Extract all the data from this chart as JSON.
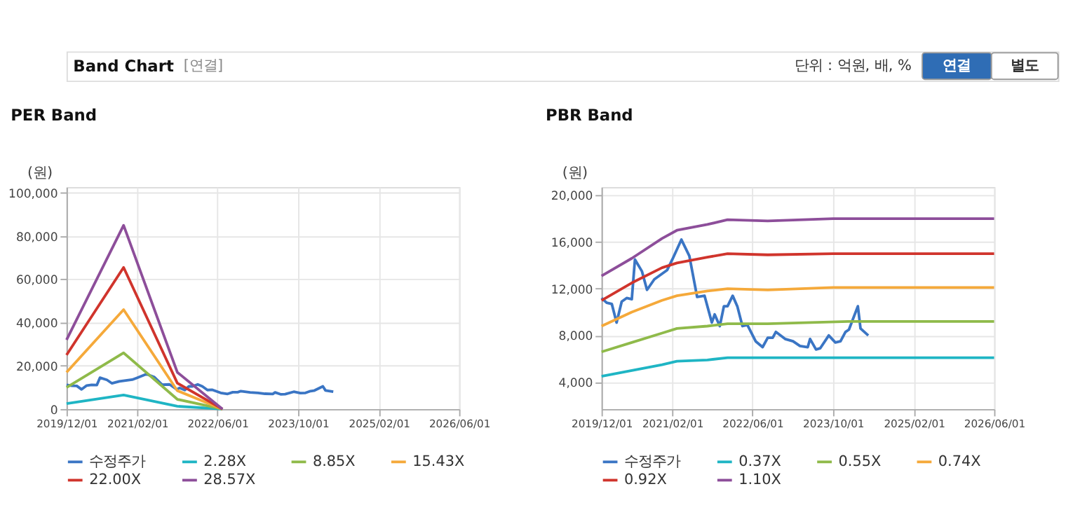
{
  "chart_data": [
    {
      "type": "line",
      "title": "PER Band",
      "ylabel": "(원)",
      "annotations": [
        "Band Chart",
        "[연결]",
        "단위 : 억원, 배, %",
        "연결",
        "별도"
      ],
      "xlim": [
        "2019-12-01",
        "2026-06-01"
      ],
      "xticks": [
        {
          "value": "2019-12-01",
          "label": "2019/12/01"
        },
        {
          "value": "2021-02-01",
          "label": "2021/02/01"
        },
        {
          "value": "2022-06-01",
          "label": "2022/06/01"
        },
        {
          "value": "2023-10-01",
          "label": "2023/10/01"
        },
        {
          "value": "2025-02-01",
          "label": "2025/02/01"
        },
        {
          "value": "2026-06-01",
          "label": "2026/06/01"
        }
      ],
      "ylim": [
        0,
        102700
      ],
      "yticks": [
        {
          "value": 0,
          "label": "0"
        },
        {
          "value": 20000,
          "label": "20,000"
        },
        {
          "value": 40000,
          "label": "40,000"
        },
        {
          "value": 60000,
          "label": "60,000"
        },
        {
          "value": 80000,
          "label": "80,000"
        },
        {
          "value": 100000,
          "label": "100,000"
        }
      ],
      "grid": true,
      "legend": "bottom",
      "series": [
        {
          "name": "수정주가",
          "color": "#3a75c4",
          "x": [
            "2019-12-01",
            "2020-01-01",
            "2020-02-01",
            "2020-03-01",
            "2020-04-01",
            "2020-05-01",
            "2020-06-01",
            "2020-06-20",
            "2020-08-01",
            "2020-09-01",
            "2020-10-15",
            "2021-01-01",
            "2021-02-01",
            "2021-03-28",
            "2021-05-15",
            "2021-07-01",
            "2021-08-15",
            "2021-09-28",
            "2021-10-15",
            "2021-11-15",
            "2021-12-10",
            "2022-01-01",
            "2022-02-01",
            "2022-03-01",
            "2022-04-01",
            "2022-05-01",
            "2022-06-20",
            "2022-08-01",
            "2022-09-01",
            "2022-10-01",
            "2022-10-20",
            "2022-12-15",
            "2023-02-01",
            "2023-03-15",
            "2023-05-01",
            "2023-05-15",
            "2023-06-20",
            "2023-07-15",
            "2023-09-05",
            "2023-10-15",
            "2023-11-15",
            "2023-12-15",
            "2024-01-05",
            "2024-02-28",
            "2024-03-15",
            "2024-05-01"
          ],
          "values": [
            11200,
            10800,
            10700,
            9100,
            10900,
            11200,
            11100,
            14500,
            13500,
            11900,
            12800,
            13600,
            14500,
            16200,
            14800,
            11300,
            11400,
            9100,
            9800,
            8800,
            10500,
            10500,
            11400,
            10500,
            8800,
            8900,
            7500,
            7000,
            7800,
            7800,
            8300,
            7700,
            7500,
            7100,
            7000,
            7700,
            6800,
            6900,
            8000,
            7400,
            7500,
            8300,
            8500,
            10500,
            8600,
            8000
          ]
        },
        {
          "name": "2.28X",
          "color": "#1fb5c4",
          "x": [
            "2019-12-01",
            "2020-11-10",
            "2021-10-01",
            "2022-07-01"
          ],
          "values": [
            2500,
            6500,
            1300,
            0
          ]
        },
        {
          "name": "8.85X",
          "color": "#8fba4a",
          "x": [
            "2019-12-01",
            "2020-11-10",
            "2021-10-01",
            "2022-07-01"
          ],
          "values": [
            10000,
            26000,
            4500,
            0
          ]
        },
        {
          "name": "15.43X",
          "color": "#f5a93a",
          "x": [
            "2019-12-01",
            "2020-11-10",
            "2021-10-01",
            "2022-07-01"
          ],
          "values": [
            17000,
            46000,
            8500,
            0
          ]
        },
        {
          "name": "22.00X",
          "color": "#d0342c",
          "x": [
            "2019-12-01",
            "2020-11-10",
            "2021-10-01",
            "2022-07-01"
          ],
          "values": [
            25000,
            65500,
            12000,
            0
          ]
        },
        {
          "name": "28.57X",
          "color": "#8d4e9a",
          "x": [
            "2019-12-01",
            "2020-11-10",
            "2021-10-01",
            "2022-07-01"
          ],
          "values": [
            32000,
            85000,
            17000,
            0
          ]
        }
      ]
    },
    {
      "type": "line",
      "title": "PBR Band",
      "ylabel": "(원)",
      "xlim": [
        "2019-12-01",
        "2026-06-01"
      ],
      "xticks": [
        {
          "value": "2019-12-01",
          "label": "2019/12/01"
        },
        {
          "value": "2021-02-01",
          "label": "2021/02/01"
        },
        {
          "value": "2022-06-01",
          "label": "2022/06/01"
        },
        {
          "value": "2023-10-01",
          "label": "2023/10/01"
        },
        {
          "value": "2025-02-01",
          "label": "2025/02/01"
        },
        {
          "value": "2026-06-01",
          "label": "2026/06/01"
        }
      ],
      "ylim": [
        1700,
        20700
      ],
      "yticks": [
        {
          "value": 4000,
          "label": "4,000"
        },
        {
          "value": 8000,
          "label": "8,000"
        },
        {
          "value": 12000,
          "label": "12,000"
        },
        {
          "value": 16000,
          "label": "16,000"
        },
        {
          "value": 20000,
          "label": "20,000"
        }
      ],
      "grid": true,
      "legend": "bottom",
      "series": [
        {
          "name": "수정주가",
          "color": "#3a75c4",
          "x": [
            "2019-12-01",
            "2020-01-01",
            "2020-02-01",
            "2020-03-01",
            "2020-04-01",
            "2020-05-01",
            "2020-06-01",
            "2020-06-20",
            "2020-08-01",
            "2020-09-01",
            "2020-10-15",
            "2021-01-01",
            "2021-02-01",
            "2021-03-28",
            "2021-05-15",
            "2021-07-01",
            "2021-08-15",
            "2021-09-28",
            "2021-10-15",
            "2021-11-15",
            "2021-12-10",
            "2022-01-01",
            "2022-02-01",
            "2022-03-01",
            "2022-04-01",
            "2022-05-01",
            "2022-06-20",
            "2022-08-01",
            "2022-09-01",
            "2022-10-01",
            "2022-10-20",
            "2022-12-15",
            "2023-02-01",
            "2023-03-15",
            "2023-05-01",
            "2023-05-15",
            "2023-06-20",
            "2023-07-15",
            "2023-09-05",
            "2023-10-15",
            "2023-11-15",
            "2023-12-15",
            "2024-01-05",
            "2024-02-28",
            "2024-03-15",
            "2024-05-01"
          ],
          "values": [
            11200,
            10800,
            10700,
            9100,
            10900,
            11200,
            11100,
            14500,
            13500,
            11900,
            12800,
            13600,
            14500,
            16200,
            14800,
            11300,
            11400,
            9100,
            9800,
            8800,
            10500,
            10500,
            11400,
            10500,
            8800,
            8900,
            7500,
            7000,
            7800,
            7800,
            8300,
            7700,
            7500,
            7100,
            7000,
            7700,
            6800,
            6900,
            8000,
            7400,
            7500,
            8300,
            8500,
            10500,
            8600,
            8000
          ]
        },
        {
          "name": "0.37X",
          "color": "#1fb5c4",
          "x": [
            "2019-12-01",
            "2020-06-01",
            "2020-12-01",
            "2021-03-01",
            "2021-09-01",
            "2022-01-01",
            "2022-09-01",
            "2023-10-01",
            "2026-06-01"
          ],
          "values": [
            4500,
            5000,
            5500,
            5800,
            5900,
            6100,
            6100,
            6100,
            6100
          ]
        },
        {
          "name": "0.55X",
          "color": "#8fba4a",
          "x": [
            "2019-12-01",
            "2020-06-01",
            "2020-12-01",
            "2021-03-01",
            "2021-09-01",
            "2022-01-01",
            "2022-09-01",
            "2024-01-01",
            "2026-06-01"
          ],
          "values": [
            6600,
            7400,
            8200,
            8600,
            8800,
            9000,
            9000,
            9200,
            9200
          ]
        },
        {
          "name": "0.74X",
          "color": "#f5a93a",
          "x": [
            "2019-12-01",
            "2020-06-01",
            "2020-12-01",
            "2021-03-01",
            "2021-09-01",
            "2022-01-01",
            "2022-09-01",
            "2023-10-01",
            "2026-06-01"
          ],
          "values": [
            8800,
            10000,
            11000,
            11400,
            11800,
            12000,
            11900,
            12100,
            12100
          ]
        },
        {
          "name": "0.92X",
          "color": "#d0342c",
          "x": [
            "2019-12-01",
            "2020-06-01",
            "2020-12-01",
            "2021-03-01",
            "2021-09-01",
            "2022-01-01",
            "2022-09-01",
            "2023-10-01",
            "2026-06-01"
          ],
          "values": [
            11000,
            12500,
            13800,
            14200,
            14700,
            15000,
            14900,
            15000,
            15000
          ]
        },
        {
          "name": "1.10X",
          "color": "#8d4e9a",
          "x": [
            "2019-12-01",
            "2020-06-01",
            "2020-12-01",
            "2021-03-01",
            "2021-09-01",
            "2022-01-01",
            "2022-09-01",
            "2023-10-01",
            "2026-06-01"
          ],
          "values": [
            13100,
            14600,
            16300,
            17000,
            17500,
            17900,
            17800,
            18000,
            18000
          ]
        }
      ]
    }
  ]
}
